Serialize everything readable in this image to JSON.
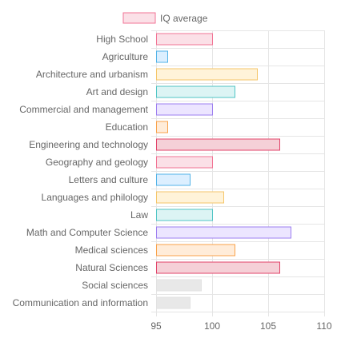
{
  "chart_data": {
    "type": "bar",
    "orientation": "horizontal",
    "legend": {
      "label": "IQ average",
      "position": "top"
    },
    "categories": [
      "High School",
      "Agriculture",
      "Architecture and urbanism",
      "Art and design",
      "Commercial and management",
      "Education",
      "Engineering and technology",
      "Geography and geology",
      "Letters and culture",
      "Languages and philology",
      "Law",
      "Math and Computer Science",
      "Medical sciences",
      "Natural Sciences",
      "Social sciences",
      "Communication and information"
    ],
    "series": [
      {
        "name": "IQ average",
        "values": [
          100,
          96,
          104,
          102,
          100,
          96,
          106,
          100,
          98,
          101,
          100,
          107,
          102,
          106,
          99,
          98
        ]
      }
    ],
    "bar_fills": [
      "#fbe0e7",
      "#dcefff",
      "#fff3d9",
      "#dcf4f4",
      "#ece5ff",
      "#ffecd9",
      "#f5d0d7",
      "#fbe0e7",
      "#dcefff",
      "#fff3d9",
      "#dcf4f4",
      "#ece5ff",
      "#ffecd9",
      "#f5d0d7",
      "#e8e8e8",
      "#e8e8e8"
    ],
    "bar_strokes": [
      "#f27394",
      "#52b3e8",
      "#f5c66a",
      "#51c5c5",
      "#9d7ff0",
      "#f9a24a",
      "#e2436a",
      "#f27394",
      "#52b3e8",
      "#f5c66a",
      "#51c5c5",
      "#9d7ff0",
      "#f9a24a",
      "#e2436a",
      "#e2e2e2",
      "#e2e2e2"
    ],
    "xlim": [
      95,
      110
    ],
    "x_ticks": [
      "95",
      "100",
      "105",
      "110"
    ],
    "grid": true,
    "legend_fill": "#fbe0e7",
    "legend_stroke": "#f27394"
  }
}
